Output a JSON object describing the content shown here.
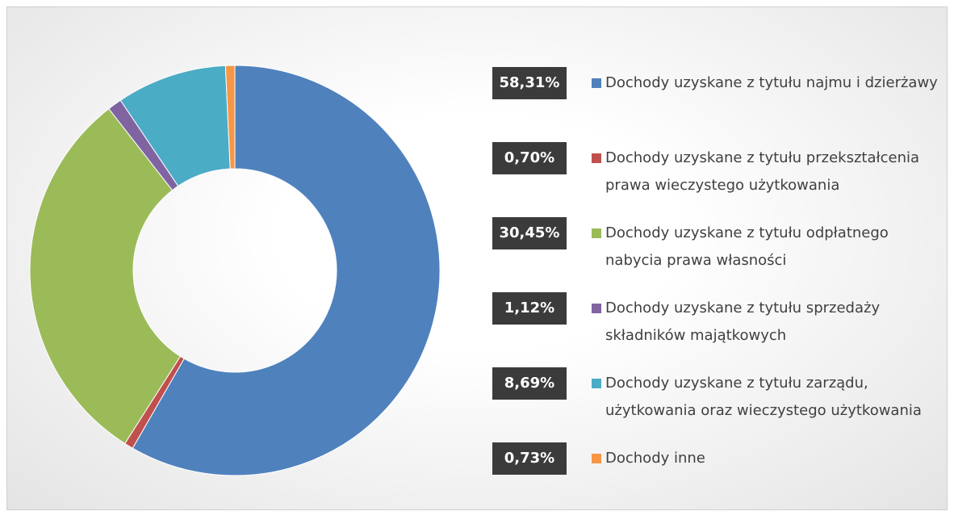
{
  "chart_data": {
    "type": "donut",
    "categories": [
      "Dochody uzyskane z tytułu najmu i dzierżawy",
      "Dochody uzyskane z tytułu przekształcenia prawa wieczystego użytkowania",
      "Dochody uzyskane z tytułu odpłatnego nabycia prawa własności",
      "Dochody uzyskane z tytułu sprzedaży składników majątkowych",
      "Dochody uzyskane z tytułu zarządu, użytkowania oraz wieczystego użytkowania",
      "Dochody inne"
    ],
    "values": [
      58.31,
      0.7,
      30.45,
      1.12,
      8.69,
      0.73
    ],
    "value_labels": [
      "58,31%",
      "0,70%",
      "30,45%",
      "1,12%",
      "8,69%",
      "0,73%"
    ],
    "colors": [
      "#4f81bd",
      "#c0504d",
      "#9bbb59",
      "#8064a2",
      "#4bacc6",
      "#f79646"
    ],
    "legend": "right"
  }
}
